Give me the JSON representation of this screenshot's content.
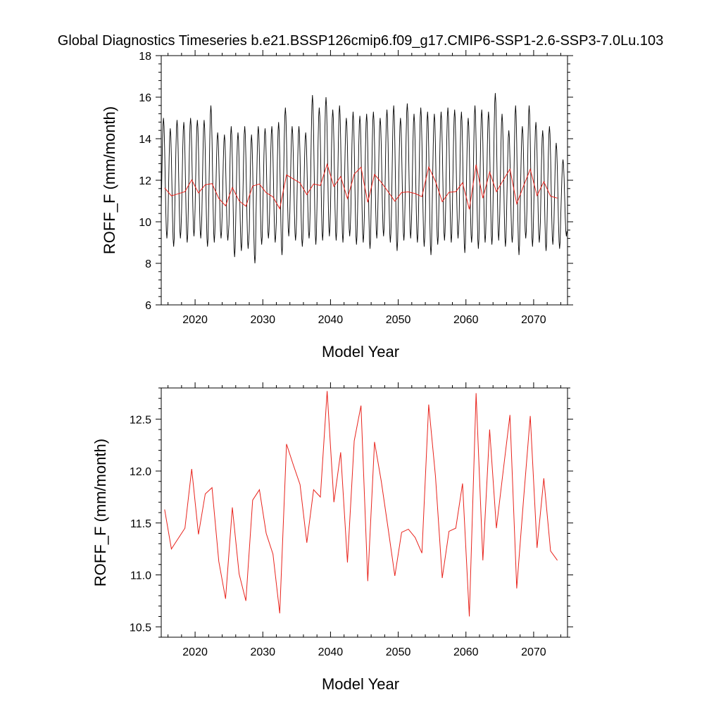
{
  "figure_title": "Global Diagnostics Timeseries b.e21.BSSP126cmip6.f09_g17.CMIP6-SSP1-2.6-SSP3-7.0Lu.103",
  "colors": {
    "monthly": "#000000",
    "annual": "#e8231c",
    "axes": "#000000",
    "background": "#ffffff"
  },
  "chart_data": [
    {
      "type": "line",
      "xlabel": "Model Year",
      "ylabel": "ROFF_F (mm/month)",
      "xlim": [
        2015,
        2075
      ],
      "ylim": [
        6,
        18
      ],
      "xticks": [
        2020,
        2030,
        2040,
        2050,
        2060,
        2070
      ],
      "xtick_labels": [
        "2020",
        "2030",
        "2040",
        "2050",
        "2060",
        "2070"
      ],
      "yticks": [
        6,
        8,
        10,
        12,
        14,
        16,
        18
      ],
      "ytick_labels": [
        "6",
        "8",
        "10",
        "12",
        "14",
        "16",
        "18"
      ],
      "grid": false,
      "series": [
        {
          "color": "#000000",
          "description": "monthly values, seasonal cycle",
          "start_year": 2015,
          "points_per_year": 12,
          "annual_max": [
            15.0,
            14.5,
            14.9,
            14.8,
            15.0,
            14.9,
            14.9,
            15.6,
            14.3,
            14.2,
            14.6,
            14.3,
            14.6,
            14.2,
            14.6,
            14.5,
            14.6,
            14.8,
            15.5,
            14.6,
            14.6,
            14.3,
            16.1,
            15.5,
            16.0,
            15.4,
            15.6,
            15.0,
            15.3,
            15.1,
            15.2,
            15.3,
            15.0,
            15.4,
            15.6,
            15.0,
            15.7,
            15.2,
            15.5,
            15.3,
            15.2,
            15.3,
            15.5,
            15.4,
            15.3,
            15.0,
            15.6,
            15.4,
            15.3,
            16.2,
            15.2,
            14.4,
            15.6,
            14.6,
            15.6,
            14.8,
            14.4,
            14.6,
            13.8,
            13.0
          ],
          "annual_min": [
            9.2,
            8.8,
            9.2,
            9.0,
            9.3,
            9.2,
            8.8,
            9.0,
            9.2,
            9.1,
            8.3,
            8.6,
            8.7,
            8.0,
            8.9,
            9.2,
            9.0,
            8.4,
            9.3,
            9.1,
            8.8,
            9.2,
            8.9,
            9.1,
            9.3,
            9.1,
            9.0,
            9.3,
            8.9,
            9.0,
            8.7,
            9.2,
            9.3,
            9.0,
            8.6,
            9.1,
            9.2,
            9.0,
            8.8,
            8.4,
            8.9,
            9.1,
            9.0,
            9.2,
            8.5,
            9.0,
            8.7,
            9.0,
            8.9,
            9.1,
            8.8,
            9.0,
            8.4,
            9.2,
            8.8,
            9.0,
            8.6,
            8.9,
            8.7,
            9.3
          ]
        },
        {
          "color": "#e8231c",
          "description": "annual mean",
          "x": [
            2015.5,
            2016.5,
            2017.5,
            2018.5,
            2019.5,
            2020.5,
            2021.5,
            2022.5,
            2023.5,
            2024.5,
            2025.5,
            2026.5,
            2027.5,
            2028.5,
            2029.5,
            2030.5,
            2031.5,
            2032.5,
            2033.5,
            2034.5,
            2035.5,
            2036.5,
            2037.5,
            2038.5,
            2039.5,
            2040.5,
            2041.5,
            2042.5,
            2043.5,
            2044.5,
            2045.5,
            2046.5,
            2047.5,
            2048.5,
            2049.5,
            2050.5,
            2051.5,
            2052.5,
            2053.5,
            2054.5,
            2055.5,
            2056.5,
            2057.5,
            2058.5,
            2059.5,
            2060.5,
            2061.5,
            2062.5,
            2063.5,
            2064.5,
            2065.5,
            2066.5,
            2067.5,
            2068.5,
            2069.5,
            2070.5,
            2071.5,
            2072.5,
            2073.5
          ],
          "values": [
            11.63,
            11.25,
            11.35,
            11.45,
            12.02,
            11.39,
            11.78,
            11.84,
            11.13,
            10.77,
            11.65,
            11.01,
            10.75,
            11.72,
            11.82,
            11.4,
            11.2,
            10.63,
            12.26,
            12.06,
            11.87,
            11.31,
            11.82,
            11.75,
            12.77,
            11.7,
            12.18,
            11.12,
            12.29,
            12.63,
            10.94,
            12.28,
            11.9,
            11.45,
            10.99,
            11.41,
            11.44,
            11.36,
            11.21,
            12.64,
            11.95,
            10.97,
            11.42,
            11.45,
            11.88,
            10.6,
            12.75,
            11.14,
            12.4,
            11.45,
            12.0,
            12.54,
            10.87,
            11.72,
            12.53,
            11.26,
            11.93,
            11.23,
            11.14
          ]
        }
      ]
    },
    {
      "type": "line",
      "xlabel": "Model Year",
      "ylabel": "ROFF_F (mm/month)",
      "xlim": [
        2015,
        2075
      ],
      "ylim": [
        10.4,
        12.8
      ],
      "xticks": [
        2020,
        2030,
        2040,
        2050,
        2060,
        2070
      ],
      "xtick_labels": [
        "2020",
        "2030",
        "2040",
        "2050",
        "2060",
        "2070"
      ],
      "yticks": [
        10.5,
        11.0,
        11.5,
        12.0,
        12.5
      ],
      "ytick_labels": [
        "10.5",
        "11.0",
        "11.5",
        "12.0",
        "12.5"
      ],
      "grid": false,
      "series": [
        {
          "color": "#e8231c",
          "description": "annual mean",
          "x": [
            2015.5,
            2016.5,
            2017.5,
            2018.5,
            2019.5,
            2020.5,
            2021.5,
            2022.5,
            2023.5,
            2024.5,
            2025.5,
            2026.5,
            2027.5,
            2028.5,
            2029.5,
            2030.5,
            2031.5,
            2032.5,
            2033.5,
            2034.5,
            2035.5,
            2036.5,
            2037.5,
            2038.5,
            2039.5,
            2040.5,
            2041.5,
            2042.5,
            2043.5,
            2044.5,
            2045.5,
            2046.5,
            2047.5,
            2048.5,
            2049.5,
            2050.5,
            2051.5,
            2052.5,
            2053.5,
            2054.5,
            2055.5,
            2056.5,
            2057.5,
            2058.5,
            2059.5,
            2060.5,
            2061.5,
            2062.5,
            2063.5,
            2064.5,
            2065.5,
            2066.5,
            2067.5,
            2068.5,
            2069.5,
            2070.5,
            2071.5,
            2072.5,
            2073.5
          ],
          "values": [
            11.63,
            11.25,
            11.35,
            11.45,
            12.02,
            11.39,
            11.78,
            11.84,
            11.13,
            10.77,
            11.65,
            11.01,
            10.75,
            11.72,
            11.82,
            11.4,
            11.2,
            10.63,
            12.26,
            12.06,
            11.87,
            11.31,
            11.82,
            11.75,
            12.77,
            11.7,
            12.18,
            11.12,
            12.29,
            12.63,
            10.94,
            12.28,
            11.9,
            11.45,
            10.99,
            11.41,
            11.44,
            11.36,
            11.21,
            12.64,
            11.95,
            10.97,
            11.42,
            11.45,
            11.88,
            10.6,
            12.75,
            11.14,
            12.4,
            11.45,
            12.0,
            12.54,
            10.87,
            11.72,
            12.53,
            11.26,
            11.93,
            11.23,
            11.14
          ]
        }
      ]
    }
  ]
}
